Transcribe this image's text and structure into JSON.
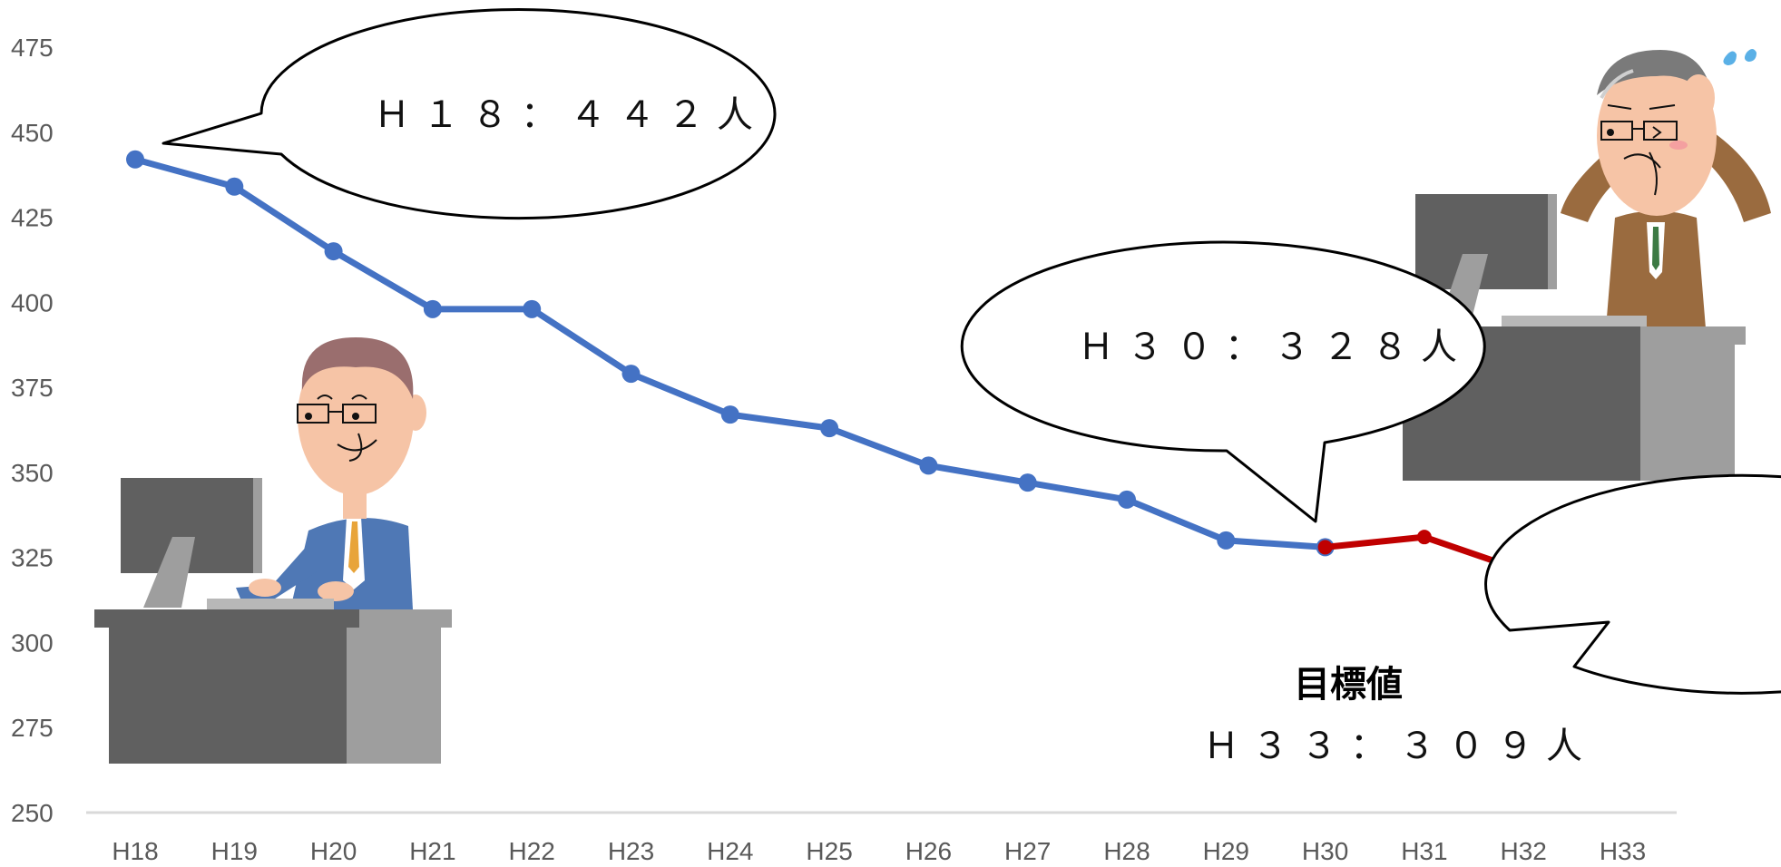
{
  "chart_data": {
    "type": "line",
    "categories": [
      "H18",
      "H19",
      "H20",
      "H21",
      "H22",
      "H23",
      "H24",
      "H25",
      "H26",
      "H27",
      "H28",
      "H29",
      "H30",
      "H31",
      "H32",
      "H33"
    ],
    "series": [
      {
        "values": [
          442,
          434,
          415,
          398,
          398,
          379,
          367,
          363,
          352,
          347,
          342,
          330,
          328,
          null,
          null,
          null
        ],
        "color": "#4472c4"
      },
      {
        "values": [
          null,
          null,
          null,
          null,
          null,
          null,
          null,
          null,
          null,
          null,
          null,
          null,
          328,
          331,
          321,
          309
        ],
        "color": "#c00000"
      }
    ],
    "yticks": [
      250,
      275,
      300,
      325,
      350,
      375,
      400,
      425,
      450,
      475
    ],
    "ylim": [
      250,
      475
    ],
    "grid": false,
    "annotations": {
      "h18": "Ｈ１８：４４２人",
      "h30": "Ｈ３０：３２８人",
      "target_title": "目標値",
      "target_value": "Ｈ３３：３０９人"
    }
  },
  "illustrations": {
    "left": "happy-businessman-at-desk-icon",
    "right": "worried-businessman-at-desk-icon"
  }
}
